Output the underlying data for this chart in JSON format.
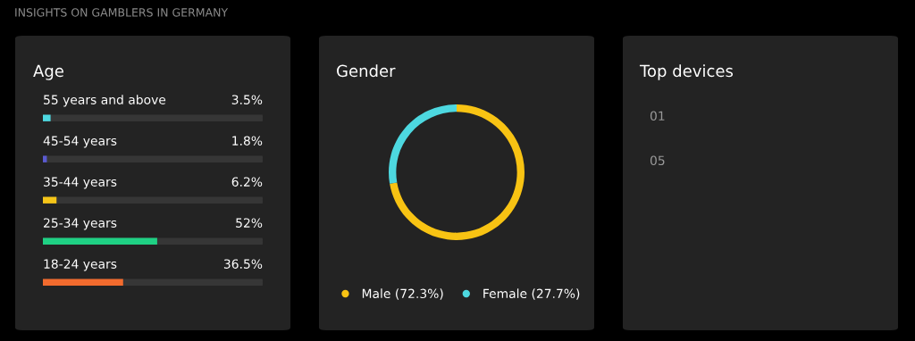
{
  "chart_data": [
    {
      "type": "bar",
      "orientation": "horizontal",
      "title": "Age",
      "annotations": [
        "INSIGHTS ON GAMBLERS IN GERMANY"
      ],
      "categories": [
        "55 years and above",
        "45-54 years",
        "35-44 years",
        "25-34 years",
        "18-24 years"
      ],
      "values": [
        3.5,
        1.8,
        6.2,
        52,
        36.5
      ],
      "colors": [
        "#4dd8e0",
        "#5a5ad0",
        "#f5c518",
        "#1fd184",
        "#f26b2e"
      ],
      "value_labels": [
        "3.5%",
        "1.8%",
        "6.2%",
        "52%",
        "36.5%"
      ],
      "xlim": [
        0,
        100
      ]
    },
    {
      "type": "donut",
      "title": "Gender",
      "categories": [
        "Male (72.3%)",
        "Female (27.7%)"
      ],
      "values": [
        72.3,
        27.7
      ],
      "colors": [
        "#f8c313",
        "#4dd8e0"
      ],
      "legend": "bottom"
    },
    {
      "type": "other",
      "title": "Top devices",
      "annotations": [
        "01",
        "05"
      ]
    }
  ]
}
